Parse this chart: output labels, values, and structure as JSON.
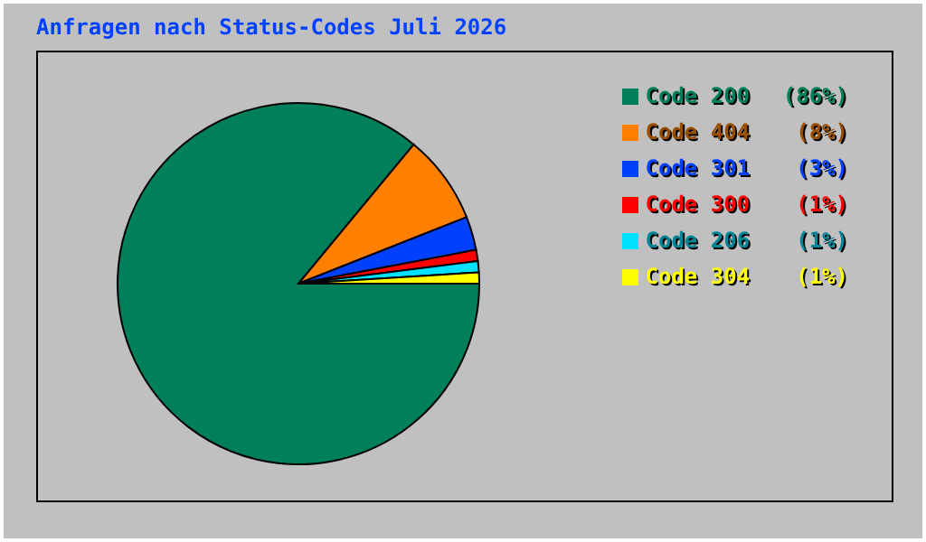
{
  "chart_data": {
    "type": "pie",
    "title": "Anfragen nach Status-Codes Juli 2026",
    "categories": [
      "Code 200",
      "Code 404",
      "Code 301",
      "Code 300",
      "Code 206",
      "Code 304"
    ],
    "values": [
      86,
      8,
      3,
      1,
      1,
      1
    ],
    "value_labels": [
      "(86%)",
      "(8%)",
      "(3%)",
      "(1%)",
      "(1%)",
      "(1%)"
    ],
    "colors": [
      "#00805a",
      "#ff8000",
      "#0040ff",
      "#ff0000",
      "#00e0ff",
      "#ffff00"
    ],
    "legend": "right"
  }
}
